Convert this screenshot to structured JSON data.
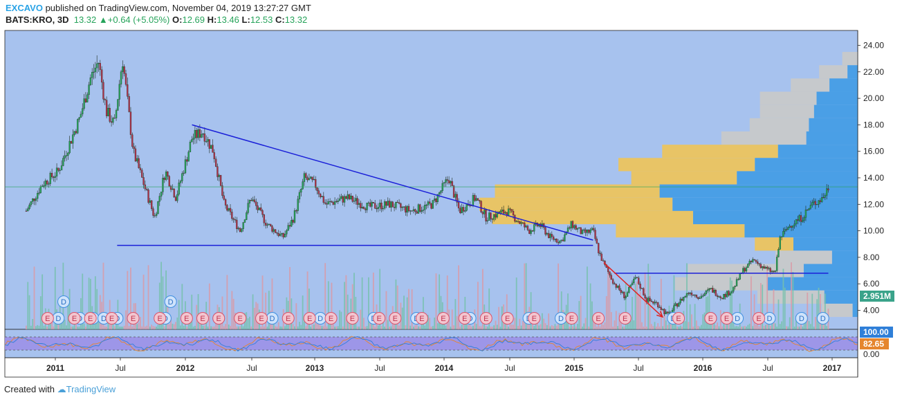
{
  "header": {
    "publisher": "EXCAVO",
    "published_text": "published on TradingView.com, November 04, 2019 13:27:27 GMT",
    "symbol": "BATS:KRO, 3D",
    "last": "13.32",
    "change": "+0.64 (+5.05%)",
    "open_label": "O:",
    "open": "12.69",
    "high_label": "H:",
    "high": "13.46",
    "low_label": "L:",
    "low": "12.53",
    "close_label": "C:",
    "close": "13.32"
  },
  "footer": {
    "created_with": "Created with",
    "brand": "TradingView"
  },
  "colors": {
    "plot_bg": "#a7c2ee",
    "up_candle": "#26a35a",
    "down_candle": "#b0324a",
    "trendline": "#1a1fd8",
    "arrow": "#e02020",
    "vp_up": "#4a9fe6",
    "vp_down": "#e8c466",
    "vp_grey": "#c6c9cc",
    "rsi_band": "#9b8ee6"
  },
  "chart_data": {
    "type": "candlestick",
    "x_axis_labels": [
      "2011",
      "Jul",
      "2012",
      "Jul",
      "2013",
      "Jul",
      "2014",
      "Jul",
      "2015",
      "Jul",
      "2016",
      "Jul",
      "2017"
    ],
    "y_ticks": [
      "24.00",
      "22.00",
      "20.00",
      "18.00",
      "16.00",
      "14.00",
      "12.00",
      "10.00",
      "8.00",
      "6.00",
      "4.00"
    ],
    "ylim": [
      2.9,
      25.0
    ],
    "price_path": [
      [
        0.0,
        11.5
      ],
      [
        0.03,
        13.5
      ],
      [
        0.06,
        14.5
      ],
      [
        0.08,
        16.5
      ],
      [
        0.1,
        18.5
      ],
      [
        0.12,
        21.5
      ],
      [
        0.135,
        22.8
      ],
      [
        0.15,
        19.0
      ],
      [
        0.165,
        18.0
      ],
      [
        0.18,
        23.0
      ],
      [
        0.2,
        16.0
      ],
      [
        0.22,
        13.5
      ],
      [
        0.24,
        11.0
      ],
      [
        0.26,
        14.5
      ],
      [
        0.28,
        12.5
      ],
      [
        0.31,
        17.0
      ],
      [
        0.33,
        17.5
      ],
      [
        0.35,
        16.0
      ],
      [
        0.37,
        12.0
      ],
      [
        0.4,
        10.0
      ],
      [
        0.42,
        12.5
      ],
      [
        0.45,
        10.5
      ],
      [
        0.48,
        9.5
      ],
      [
        0.5,
        11.0
      ],
      [
        0.52,
        14.0
      ],
      [
        0.54,
        13.5
      ],
      [
        0.56,
        12.0
      ],
      [
        0.6,
        12.5
      ],
      [
        0.64,
        11.8
      ],
      [
        0.68,
        12.0
      ],
      [
        0.72,
        11.5
      ],
      [
        0.76,
        12.0
      ],
      [
        0.79,
        14.0
      ],
      [
        0.81,
        11.5
      ],
      [
        0.84,
        12.5
      ],
      [
        0.86,
        11.0
      ],
      [
        0.9,
        11.5
      ],
      [
        0.94,
        10.0
      ],
      [
        0.96,
        10.5
      ],
      [
        0.98,
        9.5
      ],
      [
        1.0,
        9.2
      ],
      [
        1.02,
        10.5
      ],
      [
        1.04,
        9.8
      ],
      [
        1.06,
        10.0
      ],
      [
        1.07,
        8.5
      ],
      [
        1.08,
        7.5
      ],
      [
        1.1,
        6.0
      ],
      [
        1.12,
        5.0
      ],
      [
        1.14,
        6.5
      ],
      [
        1.16,
        4.8
      ],
      [
        1.18,
        4.5
      ],
      [
        1.2,
        3.6
      ],
      [
        1.22,
        4.6
      ],
      [
        1.24,
        5.4
      ],
      [
        1.26,
        5.0
      ],
      [
        1.28,
        5.6
      ],
      [
        1.3,
        5.0
      ],
      [
        1.32,
        5.5
      ],
      [
        1.34,
        7.0
      ],
      [
        1.36,
        7.8
      ],
      [
        1.38,
        7.2
      ],
      [
        1.4,
        6.8
      ],
      [
        1.41,
        9.5
      ],
      [
        1.43,
        10.5
      ],
      [
        1.45,
        11.0
      ],
      [
        1.47,
        12.0
      ],
      [
        1.49,
        12.5
      ],
      [
        1.5,
        13.3
      ]
    ],
    "volume_profile": [
      {
        "price": 23.0,
        "up": 0.0,
        "down": 0.0,
        "grey": 0.06
      },
      {
        "price": 22.0,
        "up": 0.04,
        "down": 0.0,
        "grey": 0.11
      },
      {
        "price": 21.0,
        "up": 0.11,
        "down": 0.0,
        "grey": 0.15
      },
      {
        "price": 20.0,
        "up": 0.16,
        "down": 0.0,
        "grey": 0.22
      },
      {
        "price": 19.0,
        "up": 0.17,
        "down": 0.0,
        "grey": 0.21
      },
      {
        "price": 18.0,
        "up": 0.19,
        "down": 0.0,
        "grey": 0.23
      },
      {
        "price": 17.0,
        "up": 0.2,
        "down": 0.0,
        "grey": 0.33
      },
      {
        "price": 16.0,
        "up": 0.31,
        "down": 0.45,
        "grey": 0.0
      },
      {
        "price": 15.0,
        "up": 0.4,
        "down": 0.53,
        "grey": 0.0
      },
      {
        "price": 14.0,
        "up": 0.47,
        "down": 0.41,
        "grey": 0.0
      },
      {
        "price": 13.0,
        "up": 0.77,
        "down": 0.64,
        "grey": 0.0
      },
      {
        "price": 12.0,
        "up": 0.72,
        "down": 0.75,
        "grey": 0.0
      },
      {
        "price": 11.0,
        "up": 0.64,
        "down": 0.78,
        "grey": 0.0
      },
      {
        "price": 10.0,
        "up": 0.44,
        "down": 0.5,
        "grey": 0.0
      },
      {
        "price": 9.0,
        "up": 0.25,
        "down": 0.15,
        "grey": 0.0
      },
      {
        "price": 8.0,
        "up": 0.1,
        "down": 0.0,
        "grey": 0.22
      },
      {
        "price": 7.0,
        "up": 0.21,
        "down": 0.0,
        "grey": 0.45
      },
      {
        "price": 6.0,
        "up": 0.35,
        "down": 0.0,
        "grey": 0.36
      },
      {
        "price": 5.0,
        "up": 0.13,
        "down": 0.0,
        "grey": 0.26
      },
      {
        "price": 4.0,
        "up": 0.02,
        "down": 0.0,
        "grey": 0.12
      }
    ],
    "trendlines": [
      {
        "from": [
          0.31,
          18.0
        ],
        "to": [
          1.06,
          9.3
        ]
      },
      {
        "from": [
          0.17,
          8.9
        ],
        "to": [
          1.06,
          8.9
        ]
      },
      {
        "from": [
          1.1,
          6.8
        ],
        "to": [
          1.5,
          6.8
        ]
      }
    ],
    "arrow": {
      "from": [
        1.08,
        7.6
      ],
      "to": [
        1.19,
        3.5
      ]
    },
    "current_line_price": 13.32,
    "volume_label": "2.951M",
    "event_badges": [
      {
        "x": 0.06,
        "label": "D"
      },
      {
        "x": 0.1,
        "label": "D"
      },
      {
        "x": 0.125,
        "label": "D"
      },
      {
        "x": 0.145,
        "label": "D"
      },
      {
        "x": 0.17,
        "label": "D"
      },
      {
        "x": 0.26,
        "label": "D"
      },
      {
        "x": 0.36,
        "label": "D"
      },
      {
        "x": 0.46,
        "label": "D"
      },
      {
        "x": 0.55,
        "label": "D"
      },
      {
        "x": 0.65,
        "label": "D"
      },
      {
        "x": 0.73,
        "label": "D"
      },
      {
        "x": 0.83,
        "label": "D"
      },
      {
        "x": 0.94,
        "label": "D"
      },
      {
        "x": 1.0,
        "label": "D"
      },
      {
        "x": 1.21,
        "label": "D"
      },
      {
        "x": 1.28,
        "label": "D"
      },
      {
        "x": 1.33,
        "label": "D"
      },
      {
        "x": 1.39,
        "label": "D"
      },
      {
        "x": 1.45,
        "label": "D"
      },
      {
        "x": 1.49,
        "label": "D"
      },
      {
        "x": 0.04,
        "label": "E"
      },
      {
        "x": 0.09,
        "label": "E"
      },
      {
        "x": 0.12,
        "label": "E"
      },
      {
        "x": 0.16,
        "label": "E"
      },
      {
        "x": 0.2,
        "label": "E"
      },
      {
        "x": 0.25,
        "label": "E"
      },
      {
        "x": 0.3,
        "label": "E"
      },
      {
        "x": 0.33,
        "label": "E"
      },
      {
        "x": 0.36,
        "label": "E"
      },
      {
        "x": 0.4,
        "label": "E"
      },
      {
        "x": 0.44,
        "label": "E"
      },
      {
        "x": 0.49,
        "label": "E"
      },
      {
        "x": 0.53,
        "label": "E"
      },
      {
        "x": 0.57,
        "label": "E"
      },
      {
        "x": 0.61,
        "label": "E"
      },
      {
        "x": 0.66,
        "label": "E"
      },
      {
        "x": 0.69,
        "label": "E"
      },
      {
        "x": 0.74,
        "label": "E"
      },
      {
        "x": 0.78,
        "label": "E"
      },
      {
        "x": 0.82,
        "label": "E"
      },
      {
        "x": 0.86,
        "label": "E"
      },
      {
        "x": 0.9,
        "label": "E"
      },
      {
        "x": 0.95,
        "label": "E"
      },
      {
        "x": 1.02,
        "label": "E"
      },
      {
        "x": 1.07,
        "label": "E"
      },
      {
        "x": 1.12,
        "label": "E"
      },
      {
        "x": 1.22,
        "label": "E"
      },
      {
        "x": 1.28,
        "label": "E"
      },
      {
        "x": 1.31,
        "label": "E"
      },
      {
        "x": 1.37,
        "label": "E"
      }
    ],
    "event_badges_raised": [
      {
        "x": 0.07,
        "label": "D"
      },
      {
        "x": 0.27,
        "label": "D"
      }
    ],
    "rsi": {
      "y_ticks": [
        "100.00",
        "0.00"
      ],
      "current_value": "82.65",
      "upper_value": "100.00"
    }
  }
}
